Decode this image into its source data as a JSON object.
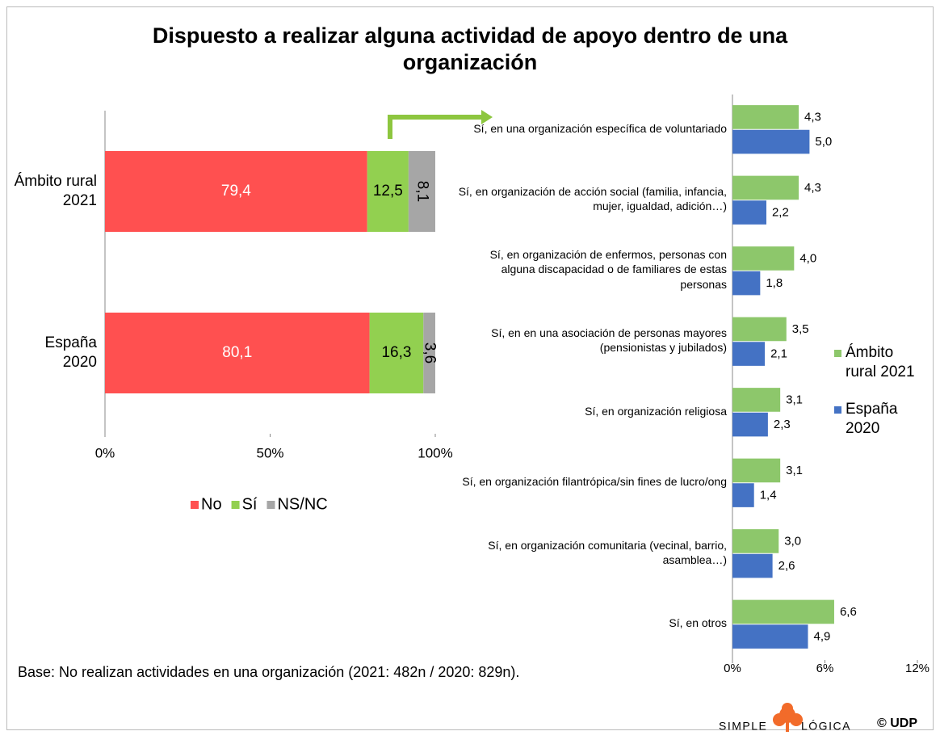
{
  "title": "Dispuesto a realizar alguna actividad de apoyo dentro de una organización",
  "footnote": "Base: No realizan actividades en una organización (2021: 482n / 2020: 829n).",
  "logo": {
    "left": "SIMPLE",
    "right": "LÓGICA",
    "copyright": "© UDP"
  },
  "chart_data": [
    {
      "type": "bar",
      "orientation": "horizontal",
      "stacked": true,
      "categories": [
        "Ámbito rural 2021",
        "España 2020"
      ],
      "series": [
        {
          "name": "No",
          "color": "#ff5050",
          "values": [
            79.4,
            80.1
          ],
          "value_labels": [
            "79,4",
            "80,1"
          ]
        },
        {
          "name": "Sí",
          "color": "#92d050",
          "values": [
            12.5,
            16.3
          ],
          "value_labels": [
            "12,5",
            "16,3"
          ]
        },
        {
          "name": "NS/NC",
          "color": "#a6a6a6",
          "values": [
            8.1,
            3.6
          ],
          "value_labels": [
            "8,1",
            "3,6"
          ]
        }
      ],
      "xlim": [
        0,
        100
      ],
      "xticks": [
        {
          "value": 0,
          "label": "0%"
        },
        {
          "value": 50,
          "label": "50%"
        },
        {
          "value": 100,
          "label": "100%"
        }
      ],
      "legend": "bottom"
    },
    {
      "type": "bar",
      "orientation": "horizontal",
      "stacked": false,
      "categories": [
        "Sí, en una organización específica de voluntariado",
        "Sí, en organización de acción social (familia, infancia, mujer, igualdad, adición…)",
        "Sí, en organización de enfermos, personas con alguna discapacidad o de familiares de estas personas",
        "Sí, en en una asociación de personas mayores (pensionistas y jubilados)",
        "Sí, en organización religiosa",
        "Sí, en organización filantrópica/sin fines de lucro/ong",
        "Sí, en organización comunitaria (vecinal, barrio, asamblea…)",
        "Sí, en otros"
      ],
      "series": [
        {
          "name": "Ámbito rural 2021",
          "color": "#8dc76b",
          "values": [
            4.3,
            4.3,
            4.0,
            3.5,
            3.1,
            3.1,
            3.0,
            6.6
          ],
          "value_labels": [
            "4,3",
            "4,3",
            "4,0",
            "3,5",
            "3,1",
            "3,1",
            "3,0",
            "6,6"
          ]
        },
        {
          "name": "España 2020",
          "color": "#4472c4",
          "values": [
            5.0,
            2.2,
            1.8,
            2.1,
            2.3,
            1.4,
            2.6,
            4.9
          ],
          "value_labels": [
            "5,0",
            "2,2",
            "1,8",
            "2,1",
            "2,3",
            "1,4",
            "2,6",
            "4,9"
          ]
        }
      ],
      "xlim": [
        0,
        12
      ],
      "xticks": [
        {
          "value": 0,
          "label": "0%"
        },
        {
          "value": 6,
          "label": "6%"
        },
        {
          "value": 12,
          "label": "12%"
        }
      ],
      "legend": "right"
    }
  ]
}
